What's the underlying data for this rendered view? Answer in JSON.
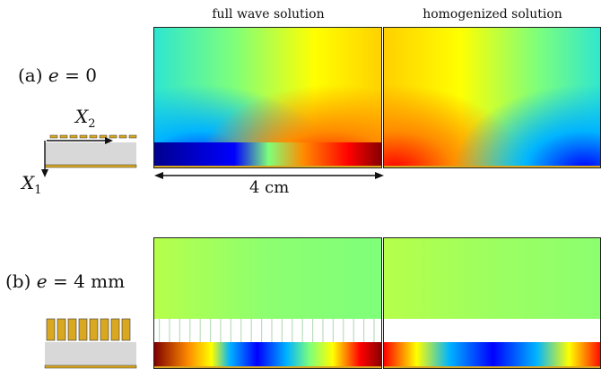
{
  "columns": {
    "full_wave": "full wave solution",
    "homogenized": "homogenized solution"
  },
  "cases": {
    "a": {
      "prefix": "(a) ",
      "var": "e",
      "rest": " = 0"
    },
    "b": {
      "prefix": "(b) ",
      "var": "e",
      "rest": " = 4 mm"
    }
  },
  "schematic": {
    "x1_symbol": "X",
    "x1_sub": "1",
    "x2_symbol": "X",
    "x2_sub": "2"
  },
  "scale": {
    "label": "4 cm"
  },
  "colors": {
    "gold": "#d9a820",
    "slab": "#d8d8d8",
    "colormap": [
      "#00008f",
      "#0000ff",
      "#00b4ff",
      "#2ee6d0",
      "#7fff7a",
      "#ffff00",
      "#ff8c00",
      "#ff0000",
      "#7f0000"
    ]
  }
}
